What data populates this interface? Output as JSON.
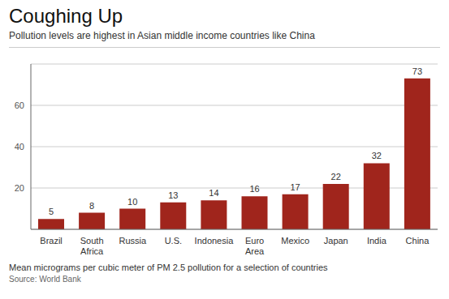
{
  "chart_data": {
    "type": "bar",
    "title": "Coughing Up",
    "subtitle": "Pollution levels are highest in Asian middle income countries like China",
    "annotations": [
      "Mean micrograms per cubic meter of PM 2.5 pollution for a selection of countries",
      "Source: World Bank"
    ],
    "categories": [
      "Brazil",
      "South\nAfrica",
      "Russia",
      "U.S.",
      "Indonesia",
      "Euro\nArea",
      "Mexico",
      "Japan",
      "India",
      "China"
    ],
    "values": [
      5,
      8,
      10,
      13,
      14,
      16,
      17,
      22,
      32,
      73
    ],
    "color": "#a0251c",
    "ylim": [
      0,
      80
    ],
    "yticks": [
      20,
      40,
      60
    ],
    "grid": true,
    "data_labels": true
  }
}
